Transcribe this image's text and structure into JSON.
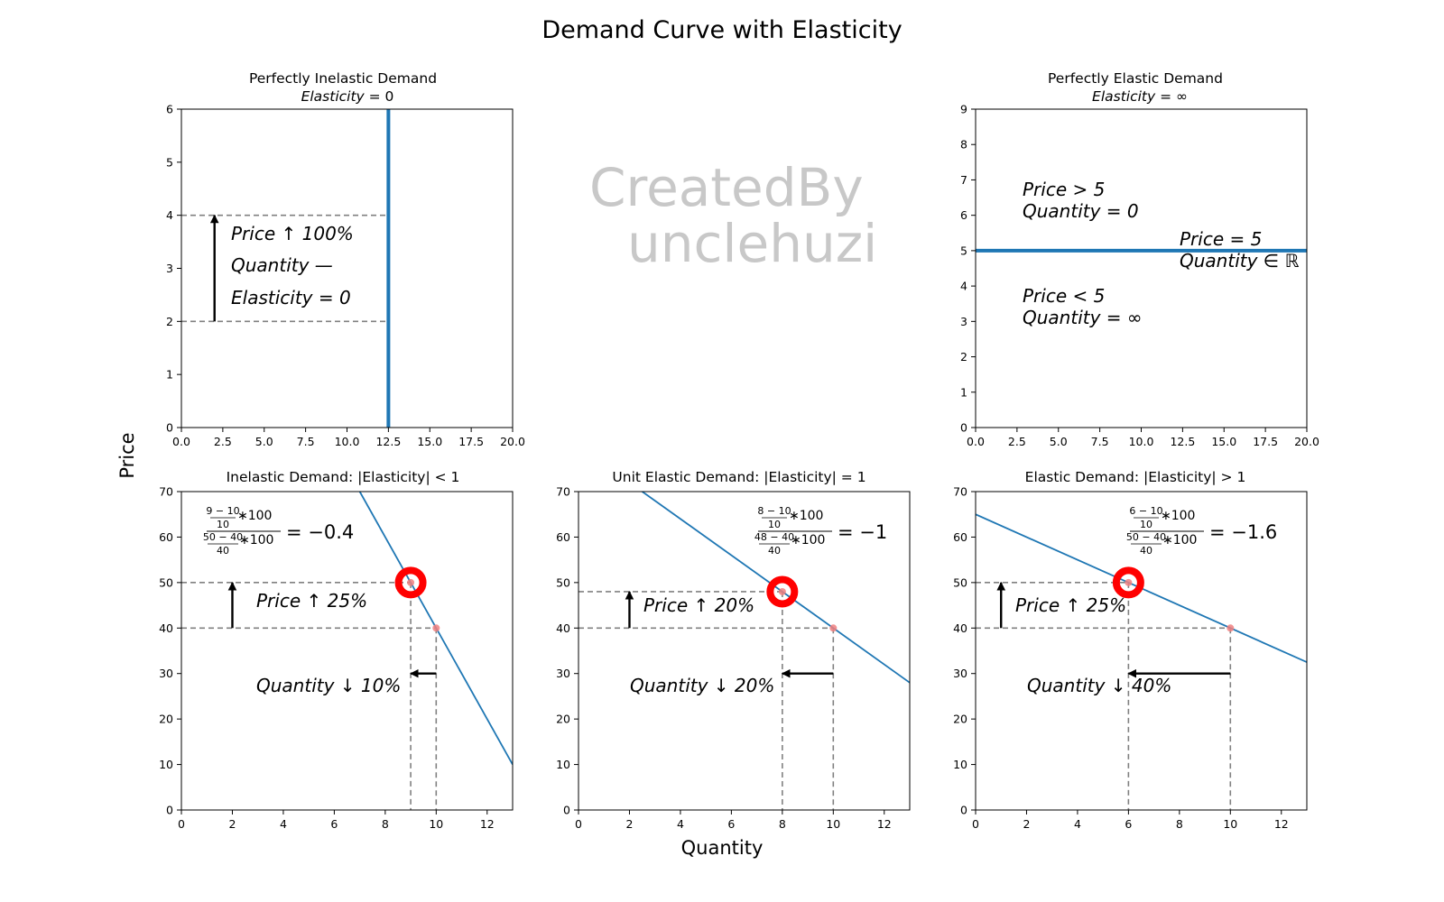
{
  "figure": {
    "title": "Demand Curve with Elasticity",
    "xlabel": "Quantity",
    "ylabel": "Price",
    "watermark": [
      "CreatedBy",
      "unclehuzi"
    ]
  },
  "colors": {
    "line": "#1f77b4",
    "guide": "#808080",
    "marker": "#ff0000",
    "point": "#f08080",
    "watermark": "#c8c8c8"
  },
  "chart_data": [
    {
      "id": "inelastic-perfect",
      "type": "line",
      "title": "Perfectly Inelastic Demand",
      "subtitle": "Elasticity = 0",
      "xlim": [
        0,
        20
      ],
      "ylim": [
        0,
        6
      ],
      "xticks": [
        "0.0",
        "2.5",
        "5.0",
        "7.5",
        "10.0",
        "12.5",
        "15.0",
        "17.5",
        "20.0"
      ],
      "yticks": [
        "0",
        "1",
        "2",
        "3",
        "4",
        "5",
        "6"
      ],
      "series": [
        {
          "name": "demand",
          "x": [
            12.5,
            12.5
          ],
          "y": [
            0,
            6
          ]
        }
      ],
      "guides": [
        [
          0,
          4,
          12.5,
          4
        ],
        [
          0,
          2,
          12.5,
          2
        ]
      ],
      "arrows": [
        [
          2,
          2,
          2,
          4
        ]
      ],
      "labels": [
        "Price ↑ 100%",
        "Quantity —",
        "Elasticity = 0"
      ]
    },
    {
      "id": "elastic-perfect",
      "type": "line",
      "title": "Perfectly Elastic Demand",
      "subtitle": "Elasticity = ∞",
      "xlim": [
        0,
        20
      ],
      "ylim": [
        0,
        9
      ],
      "xticks": [
        "0.0",
        "2.5",
        "5.0",
        "7.5",
        "10.0",
        "12.5",
        "15.0",
        "17.5",
        "20.0"
      ],
      "yticks": [
        "0",
        "1",
        "2",
        "3",
        "4",
        "5",
        "6",
        "7",
        "8",
        "9"
      ],
      "series": [
        {
          "name": "demand",
          "x": [
            0,
            20
          ],
          "y": [
            5,
            5
          ]
        }
      ],
      "labels": [
        "Price > 5",
        "Quantity = 0",
        "Price = 5",
        "Quantity ∈ ℝ",
        "Price < 5",
        "Quantity = ∞"
      ]
    },
    {
      "id": "inelastic",
      "type": "line",
      "title": "Inelastic Demand: |Elasticity| < 1",
      "xlim": [
        0,
        13
      ],
      "ylim": [
        0,
        70
      ],
      "xticks": [
        "0",
        "2",
        "4",
        "6",
        "8",
        "10",
        "12"
      ],
      "yticks": [
        "0",
        "10",
        "20",
        "30",
        "40",
        "50",
        "60",
        "70"
      ],
      "series": [
        {
          "name": "demand",
          "x": [
            7,
            13
          ],
          "y": [
            70,
            10
          ]
        }
      ],
      "points": [
        [
          9,
          50
        ],
        [
          10,
          40
        ]
      ],
      "highlight": [
        9,
        50
      ],
      "arrows": [
        [
          2,
          40,
          2,
          50
        ],
        [
          10,
          30,
          9,
          30
        ]
      ],
      "formula": {
        "num_top": "9 − 10",
        "num_bot": "10",
        "den_top": "50 − 40",
        "den_bot": "40",
        "times": "∗100",
        "result": "= −0.4"
      },
      "labels": [
        "Price ↑ 25%",
        "Quantity ↓ 10%"
      ]
    },
    {
      "id": "unit",
      "type": "line",
      "title": "Unit Elastic Demand: |Elasticity| = 1",
      "xlim": [
        0,
        13
      ],
      "ylim": [
        0,
        70
      ],
      "xticks": [
        "0",
        "2",
        "4",
        "6",
        "8",
        "10",
        "12"
      ],
      "yticks": [
        "0",
        "10",
        "20",
        "30",
        "40",
        "50",
        "60",
        "70"
      ],
      "series": [
        {
          "name": "demand",
          "x": [
            2.5,
            13
          ],
          "y": [
            70,
            28
          ]
        }
      ],
      "points": [
        [
          8,
          48
        ],
        [
          10,
          40
        ]
      ],
      "highlight": [
        8,
        48
      ],
      "arrows": [
        [
          2,
          40,
          2,
          48
        ],
        [
          10,
          30,
          8,
          30
        ]
      ],
      "formula": {
        "num_top": "8 − 10",
        "num_bot": "10",
        "den_top": "48 − 40",
        "den_bot": "40",
        "times": "∗100",
        "result": "= −1"
      },
      "labels": [
        "Price ↑ 20%",
        "Quantity ↓ 20%"
      ]
    },
    {
      "id": "elastic",
      "type": "line",
      "title": "Elastic Demand: |Elasticity| > 1",
      "xlim": [
        0,
        13
      ],
      "ylim": [
        0,
        70
      ],
      "xticks": [
        "0",
        "2",
        "4",
        "6",
        "8",
        "10",
        "12"
      ],
      "yticks": [
        "0",
        "10",
        "20",
        "30",
        "40",
        "50",
        "60",
        "70"
      ],
      "series": [
        {
          "name": "demand",
          "x": [
            0,
            13
          ],
          "y": [
            65,
            32.5
          ]
        }
      ],
      "points": [
        [
          6,
          50
        ],
        [
          10,
          40
        ]
      ],
      "highlight": [
        6,
        50
      ],
      "arrows": [
        [
          1,
          40,
          1,
          50
        ],
        [
          10,
          30,
          6,
          30
        ]
      ],
      "formula": {
        "num_top": "6 − 10",
        "num_bot": "10",
        "den_top": "50 − 40",
        "den_bot": "40",
        "times": "∗100",
        "result": "= −1.6"
      },
      "labels": [
        "Price ↑ 25%",
        "Quantity ↓ 40%"
      ]
    }
  ]
}
